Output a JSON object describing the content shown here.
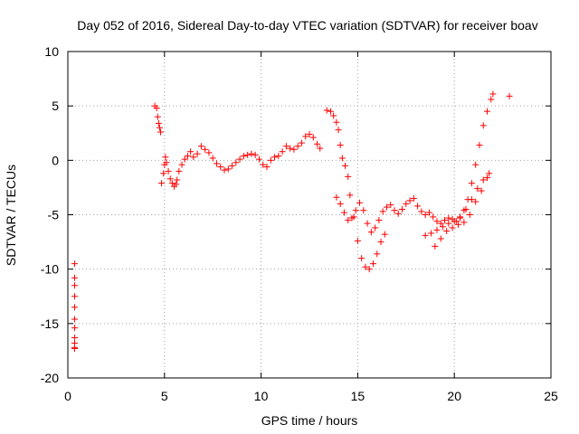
{
  "chart_data": {
    "type": "scatter",
    "title": "Day 052 of 2016, Sidereal Day-to-day VTEC variation (SDTVAR) for receiver boav",
    "xlabel": "GPS time / hours",
    "ylabel": "SDTVAR / TECUs",
    "xlim": [
      0,
      25
    ],
    "ylim": [
      -20,
      10
    ],
    "xticks": [
      "0",
      "5",
      "10",
      "15",
      "20",
      "25"
    ],
    "yticks": [
      "-20",
      "-15",
      "-10",
      "-5",
      "0",
      "5",
      "10"
    ],
    "grid": true,
    "marker": "+",
    "color": "#ff0000",
    "series": [
      {
        "x": [
          0.35,
          0.35,
          0.35,
          0.35,
          0.35,
          0.35,
          0.35,
          0.35,
          0.35,
          0.35,
          0.35,
          4.5,
          4.6,
          4.65,
          4.7,
          4.75,
          4.8,
          4.85,
          4.95,
          5.0,
          5.05,
          5.1,
          5.2,
          5.3,
          5.4,
          5.5,
          5.6,
          5.65,
          5.75,
          5.9,
          6.05,
          6.2,
          6.35,
          6.5,
          6.7,
          6.9,
          7.1,
          7.3,
          7.5,
          7.7,
          7.9,
          8.1,
          8.3,
          8.5,
          8.7,
          8.9,
          9.1,
          9.3,
          9.5,
          9.7,
          9.9,
          10.1,
          10.3,
          10.5,
          10.7,
          10.9,
          11.1,
          11.3,
          11.5,
          11.7,
          11.9,
          12.1,
          12.3,
          12.5,
          12.7,
          12.9,
          13.05,
          13.4,
          13.6,
          13.75,
          13.9,
          14.0,
          14.1,
          14.2,
          14.35,
          14.5,
          14.6,
          14.8,
          15.0,
          15.2,
          15.4,
          15.6,
          15.8,
          16.0,
          16.2,
          16.4,
          13.9,
          14.1,
          14.3,
          14.5,
          14.7,
          14.9,
          15.1,
          15.3,
          15.5,
          15.7,
          15.9,
          16.1,
          16.3,
          16.5,
          16.7,
          16.9,
          17.1,
          17.3,
          17.5,
          17.7,
          17.9,
          18.1,
          18.3,
          18.5,
          18.7,
          18.9,
          19.1,
          19.3,
          19.5,
          19.7,
          19.9,
          20.1,
          20.3,
          20.5,
          20.7,
          20.9,
          21.1,
          21.3,
          21.5,
          21.7,
          21.9,
          22.0,
          18.5,
          18.8,
          19.1,
          19.4,
          19.7,
          20.0,
          20.3,
          20.6,
          20.9,
          21.2,
          21.5,
          21.8,
          19.0,
          19.3,
          19.6,
          19.9,
          20.2,
          20.5,
          20.8,
          21.1,
          21.4,
          21.7,
          22.85
        ],
        "y": [
          -9.5,
          -10.8,
          -11.5,
          -12.5,
          -13.5,
          -14.6,
          -15.4,
          -16.3,
          -16.8,
          -17.3,
          -17.2,
          5.0,
          4.8,
          4.0,
          3.4,
          3.0,
          2.6,
          -2.1,
          -1.2,
          -0.4,
          0.3,
          -0.2,
          -1.0,
          -1.7,
          -2.1,
          -2.4,
          -2.2,
          -1.8,
          -1.0,
          -0.4,
          0.1,
          0.4,
          0.8,
          0.3,
          0.6,
          1.3,
          1.0,
          0.7,
          0.2,
          -0.3,
          -0.6,
          -0.9,
          -0.8,
          -0.5,
          -0.2,
          0.1,
          0.4,
          0.5,
          0.6,
          0.5,
          0.1,
          -0.4,
          -0.6,
          0.0,
          0.3,
          0.4,
          0.8,
          1.3,
          1.1,
          1.0,
          1.3,
          1.6,
          2.2,
          2.4,
          2.1,
          1.5,
          1.1,
          4.6,
          4.5,
          4.1,
          3.5,
          2.8,
          1.4,
          0.2,
          -0.5,
          -1.5,
          -3.2,
          -5.2,
          -7.4,
          -9.0,
          -9.8,
          -10.0,
          -9.5,
          -8.6,
          -7.5,
          -6.8,
          -3.4,
          -4.0,
          -4.8,
          -5.5,
          -5.3,
          -4.6,
          -3.9,
          -4.6,
          -5.8,
          -6.6,
          -6.2,
          -5.5,
          -4.7,
          -4.3,
          -4.1,
          -4.6,
          -4.9,
          -4.5,
          -4.0,
          -3.7,
          -3.5,
          -4.2,
          -4.7,
          -5.0,
          -4.8,
          -5.2,
          -5.6,
          -5.8,
          -5.5,
          -5.3,
          -5.4,
          -5.6,
          -5.3,
          -4.6,
          -3.6,
          -2.1,
          -0.4,
          1.4,
          3.2,
          4.5,
          5.6,
          6.1,
          -6.9,
          -6.7,
          -6.4,
          -6.1,
          -5.8,
          -5.6,
          -5.2,
          -4.5,
          -3.6,
          -2.6,
          -1.8,
          -1.2,
          -7.9,
          -7.2,
          -6.5,
          -6.2,
          -5.9,
          -5.7,
          -5.0,
          -3.8,
          -2.8,
          -1.6,
          5.9
        ]
      }
    ]
  }
}
